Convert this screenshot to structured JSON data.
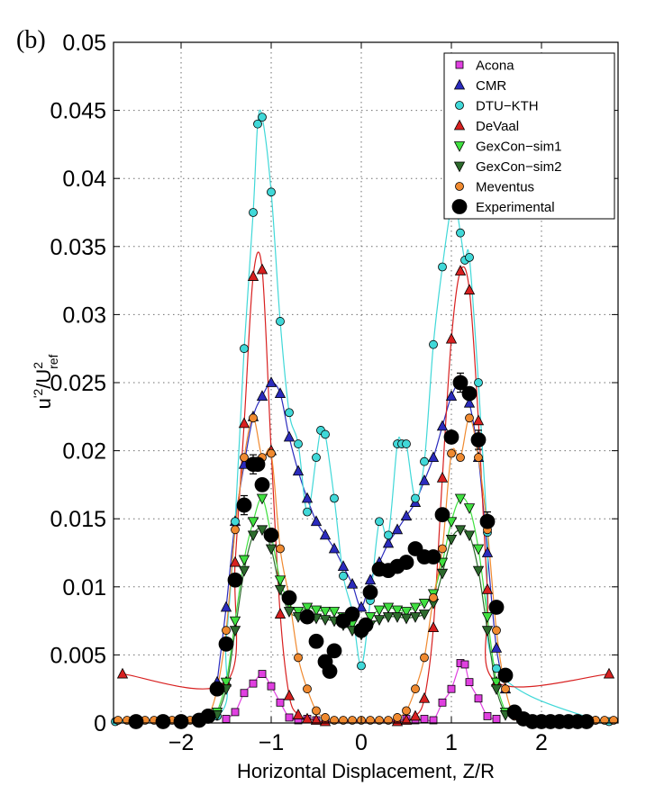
{
  "panel_label": "(b)",
  "chart_data": {
    "type": "line",
    "xlabel": "Horizontal Displacement, Z/R",
    "ylabel": {
      "base": "u",
      "sup1": "'2",
      "slash": "/U",
      "sup2": "2",
      "sub2": "ref"
    },
    "xlim": [
      -2.75,
      2.85
    ],
    "ylim": [
      0,
      0.05
    ],
    "x_ticks": [
      -2,
      -1,
      0,
      1,
      2
    ],
    "x_tick_labels": [
      "−2",
      "−1",
      "0",
      "1",
      "2"
    ],
    "y_ticks": [
      0,
      0.005,
      0.01,
      0.015,
      0.02,
      0.025,
      0.03,
      0.035,
      0.04,
      0.045,
      0.05
    ],
    "y_tick_labels": [
      "0",
      "0.005",
      "0.01",
      "0.015",
      "0.02",
      "0.025",
      "0.03",
      "0.035",
      "0.04",
      "0.045",
      "0.05"
    ],
    "grid": true,
    "legend_position": "top-right",
    "series": [
      {
        "name": "Acona",
        "color": "#e040e0",
        "marker": "square",
        "x": [
          -1.5,
          -1.4,
          -1.3,
          -1.2,
          -1.1,
          -1.0,
          -0.9,
          -0.8,
          -0.7,
          -0.6,
          -0.5,
          -0.4,
          0.4,
          0.5,
          0.6,
          0.7,
          0.8,
          0.9,
          1.0,
          1.1,
          1.15,
          1.2,
          1.3,
          1.4,
          1.5
        ],
        "y": [
          0.0003,
          0.0008,
          0.0022,
          0.0029,
          0.0036,
          0.0027,
          0.0015,
          0.0004,
          0.0002,
          0.0003,
          0.0002,
          0.0001,
          0.0002,
          0.0003,
          0.0002,
          0.0003,
          0.0002,
          0.0015,
          0.0025,
          0.0044,
          0.0043,
          0.003,
          0.0018,
          0.0005,
          0.0003
        ]
      },
      {
        "name": "CMR",
        "color": "#2b2bbd",
        "marker": "triangle-up",
        "x": [
          -1.6,
          -1.5,
          -1.4,
          -1.3,
          -1.2,
          -1.1,
          -1.0,
          -0.9,
          -0.8,
          -0.7,
          -0.6,
          -0.5,
          -0.4,
          -0.3,
          -0.2,
          -0.1,
          0.0,
          0.1,
          0.2,
          0.3,
          0.4,
          0.5,
          0.6,
          0.7,
          0.8,
          0.9,
          1.0,
          1.1,
          1.2,
          1.3,
          1.4,
          1.5,
          1.6
        ],
        "y": [
          0.003,
          0.0085,
          0.0148,
          0.019,
          0.0225,
          0.024,
          0.025,
          0.0242,
          0.021,
          0.0185,
          0.0165,
          0.0148,
          0.0138,
          0.0128,
          0.0115,
          0.0102,
          0.0085,
          0.0105,
          0.0118,
          0.0132,
          0.0142,
          0.0152,
          0.0162,
          0.0178,
          0.0195,
          0.0218,
          0.024,
          0.025,
          0.0235,
          0.0195,
          0.0125,
          0.0055,
          0.0025
        ]
      },
      {
        "name": "DTU−KTH",
        "color": "#40d8d8",
        "marker": "circle",
        "x": [
          -2.73,
          -1.6,
          -1.5,
          -1.4,
          -1.3,
          -1.2,
          -1.15,
          -1.1,
          -1.0,
          -0.9,
          -0.8,
          -0.7,
          -0.6,
          -0.5,
          -0.45,
          -0.4,
          -0.3,
          -0.2,
          -0.1,
          0.0,
          0.1,
          0.2,
          0.3,
          0.4,
          0.45,
          0.5,
          0.6,
          0.7,
          0.8,
          0.9,
          1.0,
          1.05,
          1.1,
          1.15,
          1.2,
          1.3,
          1.4,
          1.5,
          2.6,
          2.75
        ],
        "y": [
          0.0001,
          0.0005,
          0.006,
          0.0148,
          0.0275,
          0.0375,
          0.044,
          0.0445,
          0.039,
          0.0295,
          0.0228,
          0.0205,
          0.0155,
          0.0195,
          0.0215,
          0.0212,
          0.0165,
          0.0108,
          0.0082,
          0.0042,
          0.009,
          0.0148,
          0.0138,
          0.0205,
          0.0205,
          0.0205,
          0.0165,
          0.0192,
          0.0278,
          0.0335,
          0.038,
          0.038,
          0.036,
          0.034,
          0.0342,
          0.025,
          0.014,
          0.004,
          0.0002,
          0.0001
        ]
      },
      {
        "name": "DeVaal",
        "color": "#d82020",
        "marker": "triangle-up",
        "x": [
          -2.65,
          -1.5,
          -1.4,
          -1.3,
          -1.2,
          -1.1,
          -1.0,
          -0.9,
          -0.8,
          -0.7,
          -0.6,
          -0.5,
          -0.4,
          0.4,
          0.5,
          0.6,
          0.7,
          0.8,
          0.9,
          1.0,
          1.1,
          1.2,
          1.3,
          1.4,
          1.5,
          2.75
        ],
        "y": [
          0.0036,
          0.003,
          0.0118,
          0.022,
          0.0328,
          0.0333,
          0.02,
          0.008,
          0.002,
          0.0006,
          0.0003,
          0.0002,
          0.0001,
          0.0001,
          0.0002,
          0.0005,
          0.0018,
          0.007,
          0.018,
          0.0282,
          0.0332,
          0.0318,
          0.0222,
          0.0098,
          0.003,
          0.0036
        ]
      },
      {
        "name": "GexCon−sim1",
        "color": "#40e040",
        "marker": "triangle-down",
        "x": [
          -1.6,
          -1.5,
          -1.4,
          -1.3,
          -1.2,
          -1.1,
          -1.0,
          -0.9,
          -0.8,
          -0.7,
          -0.6,
          -0.5,
          -0.4,
          -0.3,
          -0.2,
          -0.1,
          0.0,
          0.1,
          0.2,
          0.3,
          0.4,
          0.5,
          0.6,
          0.7,
          0.8,
          0.9,
          1.0,
          1.1,
          1.2,
          1.3,
          1.4,
          1.5,
          1.6
        ],
        "y": [
          0.0008,
          0.003,
          0.0075,
          0.012,
          0.0148,
          0.0165,
          0.0138,
          0.0105,
          0.0088,
          0.0082,
          0.0085,
          0.0083,
          0.0082,
          0.0082,
          0.0078,
          0.0073,
          0.0068,
          0.0078,
          0.0083,
          0.0085,
          0.0083,
          0.0082,
          0.0085,
          0.0088,
          0.0095,
          0.0118,
          0.0148,
          0.0165,
          0.0158,
          0.0128,
          0.0078,
          0.003,
          0.0008
        ]
      },
      {
        "name": "GexCon−sim2",
        "color": "#2d6b2d",
        "marker": "triangle-down",
        "x": [
          -1.6,
          -1.5,
          -1.4,
          -1.3,
          -1.2,
          -1.1,
          -1.0,
          -0.9,
          -0.8,
          -0.7,
          -0.6,
          -0.5,
          -0.4,
          -0.3,
          -0.2,
          -0.1,
          0.0,
          0.1,
          0.2,
          0.3,
          0.4,
          0.5,
          0.6,
          0.7,
          0.8,
          0.9,
          1.0,
          1.1,
          1.2,
          1.3,
          1.4,
          1.5,
          1.6
        ],
        "y": [
          0.0006,
          0.0025,
          0.0068,
          0.0112,
          0.0138,
          0.0142,
          0.0128,
          0.0098,
          0.0082,
          0.0078,
          0.0078,
          0.0077,
          0.0076,
          0.0075,
          0.0072,
          0.0068,
          0.0065,
          0.0072,
          0.0076,
          0.0078,
          0.0078,
          0.0077,
          0.0078,
          0.008,
          0.0088,
          0.011,
          0.0135,
          0.0142,
          0.0138,
          0.0112,
          0.0068,
          0.0025,
          0.0006
        ]
      },
      {
        "name": "Meventus",
        "color": "#f08a30",
        "marker": "circle",
        "x": [
          -2.7,
          -2.6,
          -2.5,
          -2.4,
          -2.3,
          -2.2,
          -2.1,
          -2.0,
          -1.9,
          -1.8,
          -1.7,
          -1.6,
          -1.5,
          -1.4,
          -1.3,
          -1.2,
          -1.1,
          -1.0,
          -0.9,
          -0.8,
          -0.7,
          -0.6,
          -0.5,
          -0.4,
          -0.3,
          -0.2,
          -0.1,
          0.0,
          0.1,
          0.2,
          0.3,
          0.4,
          0.5,
          0.6,
          0.7,
          0.8,
          0.9,
          1.0,
          1.1,
          1.2,
          1.3,
          1.4,
          1.5,
          1.6,
          1.7,
          1.8,
          1.9,
          2.0,
          2.1,
          2.2,
          2.3,
          2.4,
          2.5,
          2.6,
          2.7,
          2.8
        ],
        "y": [
          0.0002,
          0.0002,
          0.0002,
          0.0002,
          0.0002,
          0.0002,
          0.0002,
          0.0002,
          0.0002,
          0.0003,
          0.0005,
          0.0025,
          0.0068,
          0.0142,
          0.0195,
          0.0224,
          0.0195,
          0.0198,
          0.0128,
          0.0092,
          0.0048,
          0.0025,
          0.0009,
          0.0004,
          0.0002,
          0.0002,
          0.0002,
          0.0002,
          0.0002,
          0.0002,
          0.0002,
          0.0004,
          0.0009,
          0.0025,
          0.0048,
          0.0092,
          0.0128,
          0.0198,
          0.0195,
          0.0224,
          0.0195,
          0.0142,
          0.0068,
          0.0025,
          0.0005,
          0.0003,
          0.0002,
          0.0002,
          0.0002,
          0.0002,
          0.0002,
          0.0002,
          0.0002,
          0.0002,
          0.0002,
          0.0002
        ]
      },
      {
        "name": "Experimental",
        "color": "#000000",
        "marker": "circle-large",
        "x": [
          -2.5,
          -2.2,
          -2.0,
          -1.8,
          -1.7,
          -1.6,
          -1.5,
          -1.4,
          -1.3,
          -1.2,
          -1.15,
          -1.1,
          -1.0,
          -0.8,
          -0.6,
          -0.5,
          -0.4,
          -0.35,
          -0.3,
          -0.2,
          -0.1,
          0.0,
          0.05,
          0.1,
          0.2,
          0.3,
          0.4,
          0.5,
          0.6,
          0.7,
          0.8,
          0.9,
          1.0,
          1.1,
          1.2,
          1.3,
          1.4,
          1.5,
          1.6,
          1.7,
          1.8,
          1.9,
          2.0,
          2.1,
          2.2,
          2.3,
          2.4,
          2.5
        ],
        "y": [
          0.0001,
          0.0001,
          0.0001,
          0.0002,
          0.0005,
          0.0025,
          0.0058,
          0.0105,
          0.016,
          0.019,
          0.019,
          0.0175,
          0.0138,
          0.0092,
          0.0078,
          0.006,
          0.0045,
          0.0038,
          0.0053,
          0.0075,
          0.008,
          0.0068,
          0.0072,
          0.0096,
          0.0113,
          0.0112,
          0.0115,
          0.0118,
          0.0128,
          0.0122,
          0.0122,
          0.0153,
          0.021,
          0.025,
          0.0242,
          0.0208,
          0.0148,
          0.0085,
          0.0035,
          0.0008,
          0.0003,
          0.0001,
          0.0001,
          0.0001,
          0.0001,
          0.0001,
          0.0001,
          0.0001
        ],
        "errorbar_indices": [
          8,
          9,
          33,
          35,
          36
        ],
        "errorbar_halfwidth": 0.0007
      }
    ]
  }
}
